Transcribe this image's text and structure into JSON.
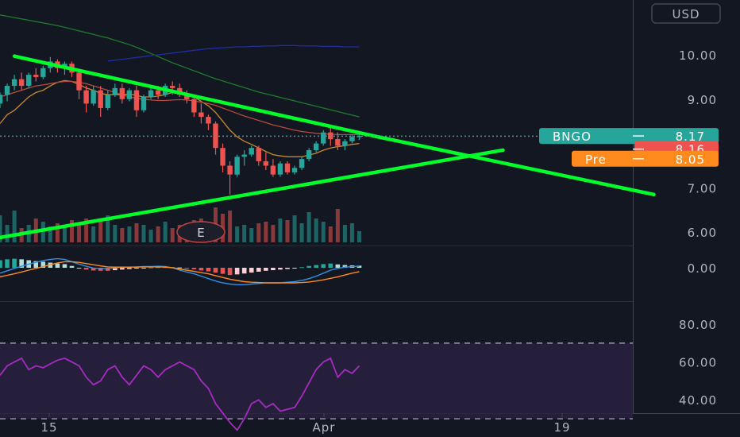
{
  "currency": "USD",
  "colors": {
    "background": "#131722",
    "up": "#26a69a",
    "down": "#ef5350",
    "trendline": "#00ff2a",
    "sma_fast": "#c8892b",
    "sma_mid": "#b84a3c",
    "sma_slow": "#1f7a2b",
    "sma_long": "#1f2ea0",
    "macd": "#2f8fe6",
    "signal": "#ff8a1e",
    "rsi": "#a62bc2",
    "rsi_band": "#2a2140",
    "bngo_tag": "#26a69a",
    "prev_tag": "#ef5350",
    "pre_tag": "#ff8a1e"
  },
  "price_tags": [
    {
      "label": "BNGO",
      "value": "8.17"
    },
    {
      "label": "",
      "value": "8.16"
    },
    {
      "label": "Pre",
      "value": "8.05"
    }
  ],
  "earnings_marker": "E",
  "chart_data": [
    {
      "type": "candlestick",
      "panel": "price",
      "y_ticks": [
        "10.00",
        "9.00",
        "8.00",
        "7.00",
        "6.00"
      ],
      "ylim": [
        5.9,
        10.6
      ],
      "x_ticks": [
        "15",
        "Apr",
        "19"
      ],
      "candles": [
        [
          8.9,
          9.15,
          8.8,
          9.1
        ],
        [
          9.1,
          9.35,
          8.95,
          9.3
        ],
        [
          9.3,
          9.55,
          9.2,
          9.45
        ],
        [
          9.45,
          9.6,
          9.2,
          9.3
        ],
        [
          9.3,
          9.6,
          9.25,
          9.55
        ],
        [
          9.55,
          9.7,
          9.4,
          9.5
        ],
        [
          9.5,
          9.75,
          9.45,
          9.7
        ],
        [
          9.7,
          9.95,
          9.6,
          9.85
        ],
        [
          9.85,
          9.9,
          9.6,
          9.7
        ],
        [
          9.7,
          9.85,
          9.55,
          9.8
        ],
        [
          9.8,
          9.85,
          9.5,
          9.6
        ],
        [
          9.6,
          9.65,
          9.0,
          9.2
        ],
        [
          9.2,
          9.3,
          8.7,
          8.9
        ],
        [
          8.9,
          9.3,
          8.85,
          9.2
        ],
        [
          9.2,
          9.3,
          8.6,
          8.8
        ],
        [
          8.8,
          9.2,
          8.75,
          9.1
        ],
        [
          9.1,
          9.35,
          9.05,
          9.25
        ],
        [
          9.25,
          9.35,
          8.9,
          9.0
        ],
        [
          9.0,
          9.25,
          8.95,
          9.2
        ],
        [
          9.2,
          9.3,
          8.6,
          8.75
        ],
        [
          8.75,
          9.1,
          8.7,
          9.05
        ],
        [
          9.05,
          9.25,
          9.0,
          9.2
        ],
        [
          9.2,
          9.3,
          9.0,
          9.1
        ],
        [
          9.1,
          9.35,
          9.05,
          9.3
        ],
        [
          9.3,
          9.4,
          9.1,
          9.25
        ],
        [
          9.25,
          9.35,
          9.05,
          9.1
        ],
        [
          9.1,
          9.2,
          8.9,
          9.0
        ],
        [
          9.0,
          9.05,
          8.6,
          8.7
        ],
        [
          8.7,
          8.9,
          8.45,
          8.6
        ],
        [
          8.6,
          8.65,
          8.3,
          8.45
        ],
        [
          8.45,
          8.5,
          7.75,
          7.9
        ],
        [
          7.9,
          8.0,
          7.35,
          7.5
        ],
        [
          7.5,
          7.6,
          6.85,
          7.3
        ],
        [
          7.3,
          7.75,
          7.25,
          7.7
        ],
        [
          7.7,
          7.85,
          7.5,
          7.75
        ],
        [
          7.75,
          7.95,
          7.7,
          7.9
        ],
        [
          7.9,
          7.95,
          7.5,
          7.6
        ],
        [
          7.6,
          7.8,
          7.4,
          7.5
        ],
        [
          7.5,
          7.65,
          7.25,
          7.3
        ],
        [
          7.3,
          7.6,
          7.25,
          7.55
        ],
        [
          7.55,
          7.6,
          7.3,
          7.35
        ],
        [
          7.35,
          7.5,
          7.3,
          7.45
        ],
        [
          7.45,
          7.7,
          7.4,
          7.65
        ],
        [
          7.65,
          7.9,
          7.6,
          7.85
        ],
        [
          7.85,
          8.05,
          7.8,
          8.0
        ],
        [
          8.0,
          8.3,
          7.95,
          8.25
        ],
        [
          8.25,
          8.4,
          7.95,
          8.1
        ],
        [
          8.1,
          8.25,
          7.85,
          7.95
        ],
        [
          7.95,
          8.1,
          7.85,
          8.05
        ],
        [
          8.05,
          8.2,
          8.0,
          8.15
        ],
        [
          8.15,
          8.22,
          8.08,
          8.17
        ]
      ],
      "volume": [
        34,
        22,
        40,
        18,
        22,
        30,
        26,
        20,
        24,
        18,
        28,
        22,
        30,
        20,
        26,
        34,
        22,
        18,
        20,
        24,
        22,
        16,
        20,
        26,
        18,
        22,
        24,
        28,
        30,
        24,
        44,
        36,
        40,
        20,
        22,
        18,
        24,
        26,
        22,
        30,
        28,
        34,
        24,
        38,
        30,
        26,
        20,
        42,
        22,
        24,
        14
      ],
      "series": [
        {
          "name": "",
          "values": [
            8.45,
            8.65,
            8.75,
            8.9,
            9.05,
            9.15,
            9.2,
            9.3,
            9.38,
            9.42,
            9.4,
            9.33,
            9.25,
            9.2,
            9.13,
            9.1,
            9.1,
            9.1,
            9.12,
            9.08,
            9.05,
            9.05,
            9.07,
            9.1,
            9.15,
            9.15,
            9.12,
            9.05,
            8.95,
            8.85,
            8.7,
            8.5,
            8.3,
            8.15,
            8.05,
            7.98,
            7.9,
            7.82,
            7.75,
            7.72,
            7.7,
            7.7,
            7.7,
            7.74,
            7.78,
            7.85,
            7.9,
            7.93,
            7.95,
            7.98,
            8.0
          ]
        },
        {
          "name": "",
          "values": [
            9.05,
            9.1,
            9.15,
            9.2,
            9.25,
            9.3,
            9.32,
            9.35,
            9.38,
            9.4,
            9.4,
            9.38,
            9.35,
            9.3,
            9.25,
            9.2,
            9.15,
            9.1,
            9.05,
            9.02,
            9.0,
            8.98,
            8.97,
            8.97,
            8.98,
            8.99,
            8.98,
            8.96,
            8.93,
            8.9,
            8.86,
            8.8,
            8.74,
            8.68,
            8.62,
            8.57,
            8.52,
            8.47,
            8.42,
            8.38,
            8.34,
            8.3,
            8.27,
            8.25,
            8.23,
            8.22,
            8.21,
            8.2,
            8.2,
            8.2,
            8.2
          ]
        },
        {
          "name": "",
          "values": [
            10.9,
            10.87,
            10.84,
            10.81,
            10.78,
            10.75,
            10.72,
            10.69,
            10.66,
            10.62,
            10.58,
            10.54,
            10.5,
            10.46,
            10.42,
            10.38,
            10.33,
            10.28,
            10.23,
            10.17,
            10.1,
            10.03,
            9.96,
            9.89,
            9.82,
            9.76,
            9.7,
            9.64,
            9.58,
            9.52,
            9.46,
            9.41,
            9.36,
            9.31,
            9.26,
            9.21,
            9.16,
            9.12,
            9.08,
            9.04,
            9.0,
            8.96,
            8.92,
            8.88,
            8.84,
            8.8,
            8.76,
            8.72,
            8.68,
            8.64,
            8.6
          ]
        },
        {
          "name": "",
          "values": [
            null,
            null,
            null,
            null,
            null,
            null,
            null,
            null,
            null,
            null,
            null,
            null,
            null,
            null,
            null,
            9.86,
            9.88,
            9.9,
            9.92,
            9.94,
            9.96,
            9.98,
            10.0,
            10.02,
            10.04,
            10.06,
            10.08,
            10.1,
            10.12,
            10.14,
            10.15,
            10.16,
            10.17,
            10.18,
            10.18,
            10.19,
            10.19,
            10.2,
            10.2,
            10.21,
            10.21,
            10.21,
            10.2,
            10.2,
            10.2,
            10.19,
            10.19,
            10.19,
            10.18,
            10.18,
            10.18
          ]
        }
      ],
      "trendlines": [
        {
          "points": [
            [
              2,
              9.97
            ],
            [
              52,
              8.17
            ]
          ]
        },
        {
          "points": [
            [
              0,
              5.88
            ],
            [
              70,
              7.85
            ]
          ]
        },
        {
          "points": [
            [
              52,
              8.17
            ],
            [
              91,
              6.85
            ]
          ]
        }
      ]
    },
    {
      "type": "macd",
      "panel": "macd",
      "y_ticks": [
        "0.00"
      ],
      "histogram": [
        0.25,
        0.28,
        0.3,
        0.28,
        0.25,
        0.22,
        0.2,
        0.17,
        0.14,
        0.12,
        0.06,
        0.0,
        -0.06,
        -0.09,
        -0.1,
        -0.1,
        -0.08,
        -0.06,
        -0.04,
        -0.02,
        0.0,
        0.01,
        0.02,
        0.02,
        0.02,
        0.01,
        -0.02,
        -0.05,
        -0.09,
        -0.12,
        -0.16,
        -0.2,
        -0.24,
        -0.22,
        -0.19,
        -0.16,
        -0.13,
        -0.1,
        -0.08,
        -0.06,
        -0.04,
        -0.02,
        0.02,
        0.06,
        0.09,
        0.12,
        0.14,
        0.11,
        0.09,
        0.08,
        0.07
      ],
      "macd": [
        -0.18,
        -0.1,
        -0.02,
        0.05,
        0.12,
        0.18,
        0.24,
        0.28,
        0.3,
        0.28,
        0.2,
        0.12,
        0.05,
        -0.01,
        -0.03,
        -0.02,
        0.0,
        0.01,
        0.02,
        0.03,
        0.04,
        0.04,
        0.05,
        0.04,
        0.0,
        -0.08,
        -0.14,
        -0.2,
        -0.28,
        -0.36,
        -0.44,
        -0.5,
        -0.54,
        -0.56,
        -0.56,
        -0.54,
        -0.52,
        -0.5,
        -0.5,
        -0.5,
        -0.48,
        -0.46,
        -0.42,
        -0.36,
        -0.28,
        -0.18,
        -0.08,
        -0.02,
        0.02,
        0.04,
        0.05
      ],
      "signal": [
        -0.3,
        -0.25,
        -0.2,
        -0.14,
        -0.08,
        -0.02,
        0.04,
        0.1,
        0.16,
        0.2,
        0.2,
        0.18,
        0.14,
        0.1,
        0.06,
        0.03,
        0.02,
        0.02,
        0.02,
        0.02,
        0.03,
        0.03,
        0.03,
        0.02,
        0.0,
        -0.04,
        -0.08,
        -0.12,
        -0.16,
        -0.2,
        -0.26,
        -0.32,
        -0.38,
        -0.42,
        -0.46,
        -0.48,
        -0.49,
        -0.5,
        -0.5,
        -0.5,
        -0.5,
        -0.5,
        -0.49,
        -0.47,
        -0.44,
        -0.4,
        -0.35,
        -0.3,
        -0.24,
        -0.18,
        -0.13
      ]
    },
    {
      "type": "line",
      "panel": "rsi",
      "y_ticks": [
        "80.00",
        "60.00",
        "40.00"
      ],
      "ylim": [
        29,
        88
      ],
      "band": [
        30,
        70
      ],
      "values": [
        53,
        58,
        60,
        62,
        56,
        58,
        57,
        59,
        61,
        62,
        60,
        58,
        52,
        48,
        50,
        56,
        58,
        52,
        48,
        53,
        58,
        56,
        52,
        56,
        58,
        60,
        58,
        56,
        50,
        46,
        38,
        33,
        28,
        24,
        30,
        38,
        40,
        36,
        38,
        34,
        35,
        36,
        42,
        49,
        56,
        60,
        62,
        52,
        56,
        54,
        58
      ]
    }
  ]
}
